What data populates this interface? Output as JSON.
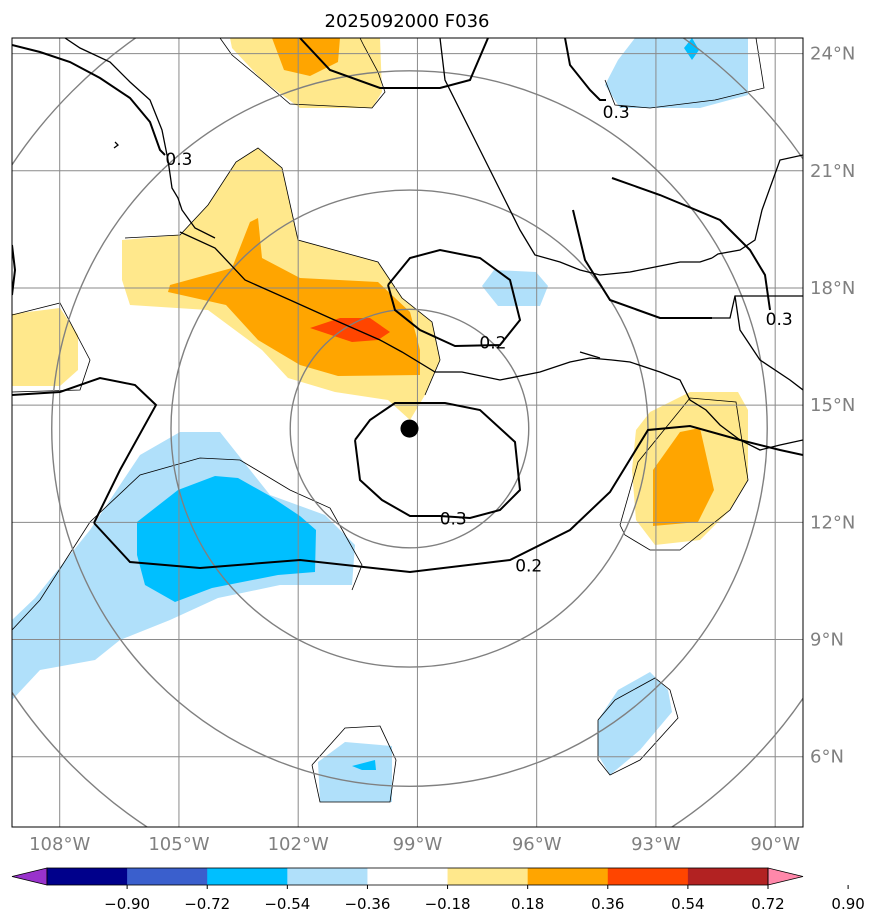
{
  "title": "2025092000 F036",
  "map": {
    "lon_range": [
      -109.2,
      -89.3
    ],
    "lat_range": [
      4.2,
      24.4
    ],
    "gridline_color": "#8a8a8a",
    "coastline_color": "#000000",
    "ring_color": "#808080"
  },
  "storm_center": {
    "lon": -99.2,
    "lat": 14.4
  },
  "range_rings_deg": [
    3,
    6,
    9,
    12
  ],
  "lon_ticks": [
    {
      "lon": -108,
      "label": "108°W"
    },
    {
      "lon": -105,
      "label": "105°W"
    },
    {
      "lon": -102,
      "label": "102°W"
    },
    {
      "lon": -99,
      "label": "99°W"
    },
    {
      "lon": -96,
      "label": "96°W"
    },
    {
      "lon": -93,
      "label": "93°W"
    },
    {
      "lon": -90,
      "label": "90°W"
    }
  ],
  "lat_ticks": [
    {
      "lat": 24,
      "label": "24°N"
    },
    {
      "lat": 21,
      "label": "21°N"
    },
    {
      "lat": 18,
      "label": "18°N"
    },
    {
      "lat": 15,
      "label": "15°N"
    },
    {
      "lat": 12,
      "label": "12°N"
    },
    {
      "lat": 9,
      "label": "9°N"
    },
    {
      "lat": 6,
      "label": "6°N"
    }
  ],
  "contour_labels": [
    {
      "text": "0.3",
      "lon": -105.0,
      "lat": 21.3
    },
    {
      "text": "0.3",
      "lon": -94.0,
      "lat": 22.5
    },
    {
      "text": "0.3",
      "lon": -89.9,
      "lat": 17.2
    },
    {
      "text": "0.2",
      "lon": -97.1,
      "lat": 16.6
    },
    {
      "text": "0.3",
      "lon": -98.1,
      "lat": 12.1
    },
    {
      "text": "0.2",
      "lon": -96.2,
      "lat": 10.9
    }
  ],
  "colorbar": {
    "colors": [
      "#9932cc",
      "#00008b",
      "#3a5fcd",
      "#00bfff",
      "#b0e0fa",
      "#ffffff",
      "#ffe88c",
      "#ffa500",
      "#ff4500",
      "#b22222",
      "#ff88aa"
    ],
    "tick_labels": [
      "−0.90",
      "−0.72",
      "−0.54",
      "−0.36",
      "−0.18",
      "0.18",
      "0.36",
      "0.54",
      "0.72",
      "0.90"
    ],
    "tick_values": [
      -0.9,
      -0.72,
      -0.54,
      -0.36,
      -0.18,
      0.18,
      0.36,
      0.54,
      0.72,
      0.9
    ]
  }
}
